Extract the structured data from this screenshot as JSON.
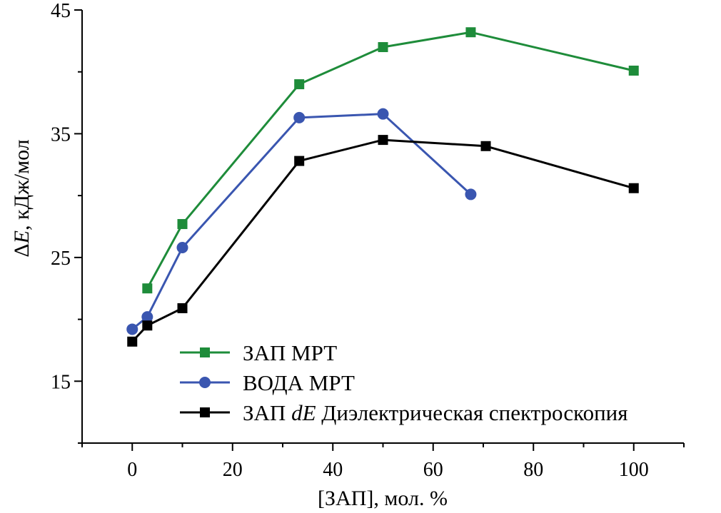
{
  "chart_data": {
    "type": "line",
    "xlabel": "[ЗАП], мол. %",
    "ylabel": "ΔE, кДж/мол",
    "ylabel_prefix": "Δ",
    "ylabel_var": "E",
    "ylabel_suffix": ", кДж/мол",
    "xlim": [
      -10,
      110
    ],
    "ylim": [
      10,
      45
    ],
    "x_ticks": [
      0,
      20,
      40,
      60,
      80,
      100
    ],
    "x_tick_labels": [
      "0",
      "20",
      "40",
      "60",
      "80",
      "100"
    ],
    "x_minor_ticks": [
      -10,
      10,
      30,
      50,
      70,
      90,
      110
    ],
    "y_ticks": [
      15,
      25,
      35,
      45
    ],
    "y_tick_labels": [
      "15",
      "25",
      "35",
      "45"
    ],
    "y_minor_ticks": [
      10,
      20,
      30,
      40
    ],
    "grid": false,
    "legend_position": "bottom-right",
    "series": [
      {
        "name": "ЗАП МРТ",
        "label_parts": [
          "ЗАП МРТ"
        ],
        "color": "#1E8C3A",
        "marker": "square",
        "x": [
          3,
          10,
          33.3,
          50,
          67.5,
          100
        ],
        "y": [
          22.5,
          27.7,
          39.0,
          42.0,
          43.2,
          40.1
        ]
      },
      {
        "name": "ВОДА МРТ",
        "label_parts": [
          "ВОДА МРТ"
        ],
        "color": "#3A56B0",
        "marker": "circle",
        "x": [
          0,
          3,
          10,
          33.3,
          50,
          67.5
        ],
        "y": [
          19.2,
          20.2,
          25.8,
          36.3,
          36.6,
          30.1
        ]
      },
      {
        "name": "ЗАП dE Диэлектрическая спектроскопия",
        "label_parts": [
          "ЗАП ",
          "dE",
          " Диэлектрическая спектроскопия"
        ],
        "color": "#000000",
        "marker": "square",
        "x": [
          0,
          3,
          10,
          33.3,
          50,
          70.5,
          100
        ],
        "y": [
          18.2,
          19.5,
          20.9,
          32.8,
          34.5,
          34.0,
          30.6
        ]
      }
    ]
  }
}
